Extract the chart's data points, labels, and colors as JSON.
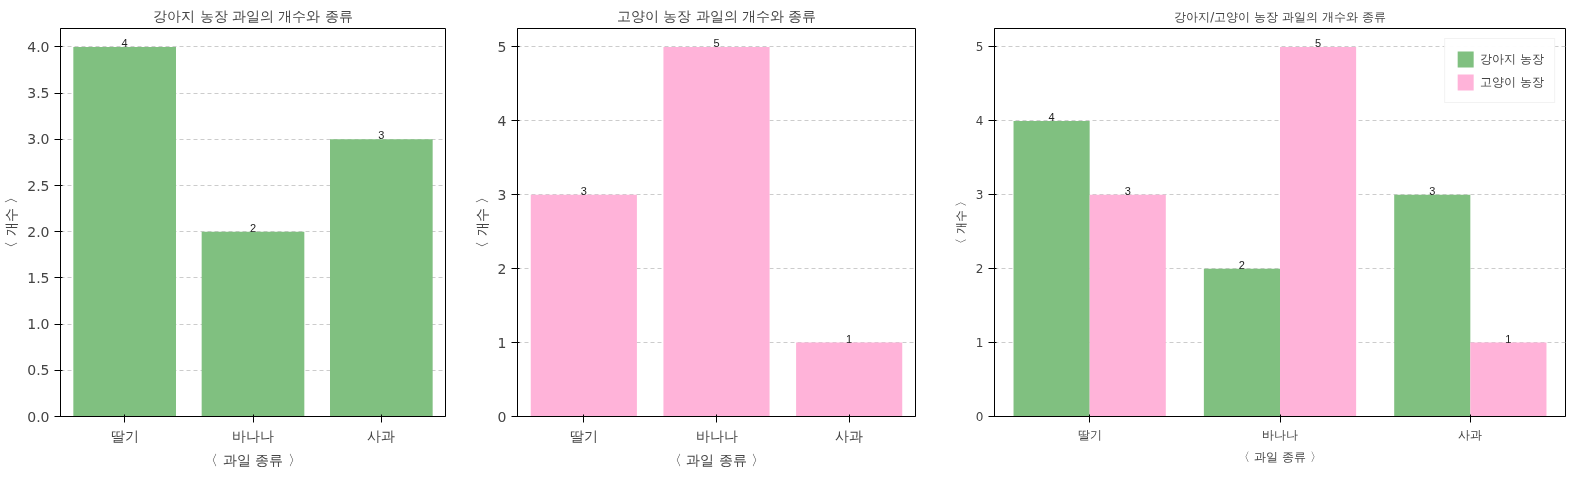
{
  "chart_data": [
    {
      "type": "bar",
      "title": "강아지 농장 과일의 개수와 종류",
      "xlabel": "〈 과일 종류 〉",
      "ylabel": "〈 개수 〉",
      "categories": [
        "딸기",
        "바나나",
        "사과"
      ],
      "values": [
        4,
        2,
        3
      ],
      "color": "#80c080",
      "ylim": [
        0,
        4.2
      ],
      "yticks": [
        {
          "value": 0,
          "label": "0.0"
        },
        {
          "value": 0.5,
          "label": "0.5"
        },
        {
          "value": 1,
          "label": "1.0"
        },
        {
          "value": 1.5,
          "label": "1.5"
        },
        {
          "value": 2,
          "label": "2.0"
        },
        {
          "value": 2.5,
          "label": "2.5"
        },
        {
          "value": 3,
          "label": "3.0"
        },
        {
          "value": 3.5,
          "label": "3.5"
        },
        {
          "value": 4,
          "label": "4.0"
        }
      ],
      "grid": "y",
      "data_labels": true
    },
    {
      "type": "bar",
      "title": "고양이 농장 과일의 개수와 종류",
      "xlabel": "〈 과일 종류 〉",
      "ylabel": "〈 개수 〉",
      "categories": [
        "딸기",
        "바나나",
        "사과"
      ],
      "values": [
        3,
        5,
        1
      ],
      "color": "#ffb3d9",
      "ylim": [
        0,
        5.25
      ],
      "yticks": [
        0,
        1,
        2,
        3,
        4,
        5
      ],
      "grid": "y",
      "data_labels": true
    },
    {
      "type": "bar",
      "title": "강아지/고양이 농장 과일의 개수와 종류",
      "xlabel": "〈 과일 종류 〉",
      "ylabel": "〈 개수 〉",
      "categories": [
        "딸기",
        "바나나",
        "사과"
      ],
      "series": [
        {
          "name": "강아지 농장",
          "color": "#80c080",
          "values": [
            4,
            2,
            3
          ]
        },
        {
          "name": "고양이 농장",
          "color": "#ffb3d9",
          "values": [
            3,
            5,
            1
          ]
        }
      ],
      "ylim": [
        0,
        5.25
      ],
      "yticks": [
        0,
        1,
        2,
        3,
        4,
        5
      ],
      "grid": "y",
      "legend": "top right",
      "data_labels": true
    }
  ]
}
